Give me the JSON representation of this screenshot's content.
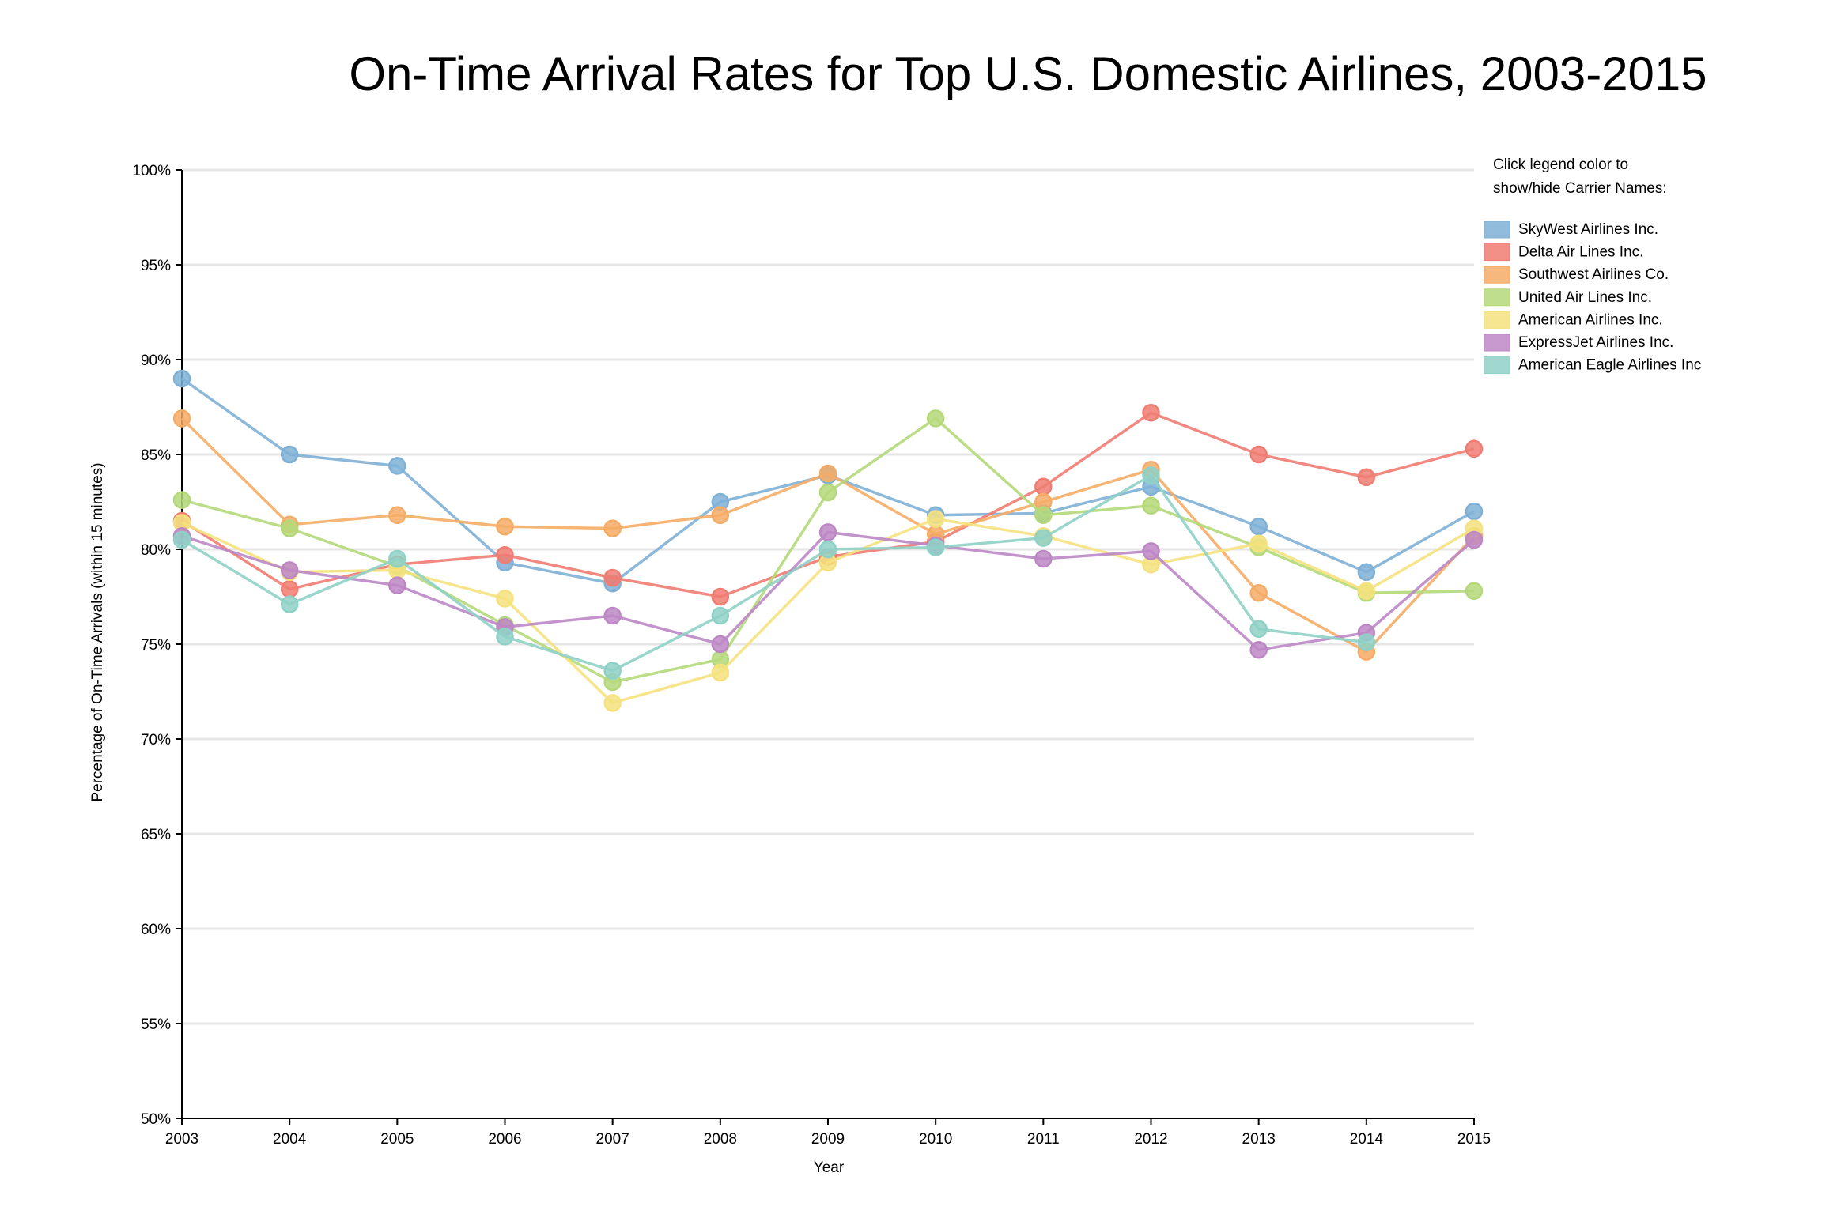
{
  "chart_data": {
    "type": "line",
    "title": "On-Time Arrival Rates for Top U.S. Domestic Airlines, 2003-2015",
    "xlabel": "Year",
    "ylabel": "Percentage of On-Time Arrivals (within 15 minutes)",
    "x": [
      "2003",
      "2004",
      "2005",
      "2006",
      "2007",
      "2008",
      "2009",
      "2010",
      "2011",
      "2012",
      "2013",
      "2014",
      "2015"
    ],
    "ylim": [
      50,
      100
    ],
    "yticks": [
      "50%",
      "55%",
      "60%",
      "65%",
      "70%",
      "75%",
      "80%",
      "85%",
      "90%",
      "95%",
      "100%"
    ],
    "grid": "horizontal",
    "legend_placement": "top-right",
    "legend_note_lines": [
      "Click legend color to",
      "show/hide Carrier Names:"
    ],
    "series": [
      {
        "name": "SkyWest Airlines Inc.",
        "color": "#7fb0d6",
        "values": [
          89.0,
          85.0,
          84.4,
          79.3,
          78.2,
          82.5,
          83.9,
          81.8,
          81.9,
          83.3,
          81.2,
          78.8,
          82.0
        ]
      },
      {
        "name": "Delta Air Lines Inc.",
        "color": "#f07c72",
        "values": [
          81.5,
          77.9,
          79.2,
          79.7,
          78.5,
          77.5,
          79.6,
          80.4,
          83.3,
          87.2,
          85.0,
          83.8,
          85.3
        ]
      },
      {
        "name": "Southwest Airlines Co.",
        "color": "#f5ac66",
        "values": [
          86.9,
          81.3,
          81.8,
          81.2,
          81.1,
          81.8,
          84.0,
          80.8,
          82.5,
          84.2,
          77.7,
          74.6,
          80.7
        ]
      },
      {
        "name": "United Air Lines Inc.",
        "color": "#b5d97a",
        "values": [
          82.6,
          81.1,
          79.1,
          76.0,
          73.0,
          74.2,
          83.0,
          86.9,
          81.8,
          82.3,
          80.1,
          77.7,
          77.8
        ]
      },
      {
        "name": "American Airlines Inc.",
        "color": "#f5e27e",
        "values": [
          81.4,
          78.8,
          78.9,
          77.4,
          71.9,
          73.5,
          79.3,
          81.6,
          80.7,
          79.2,
          80.3,
          77.8,
          81.1
        ]
      },
      {
        "name": "ExpressJet Airlines Inc.",
        "color": "#bd87c5",
        "values": [
          80.7,
          78.9,
          78.1,
          75.9,
          76.5,
          75.0,
          80.9,
          80.2,
          79.5,
          79.9,
          74.7,
          75.6,
          80.5
        ]
      },
      {
        "name": "American Eagle Airlines Inc",
        "color": "#8fd1c7",
        "values": [
          80.5,
          77.1,
          79.5,
          75.4,
          73.6,
          76.5,
          80.0,
          80.1,
          80.6,
          83.9,
          75.8,
          75.1,
          null
        ]
      }
    ]
  }
}
